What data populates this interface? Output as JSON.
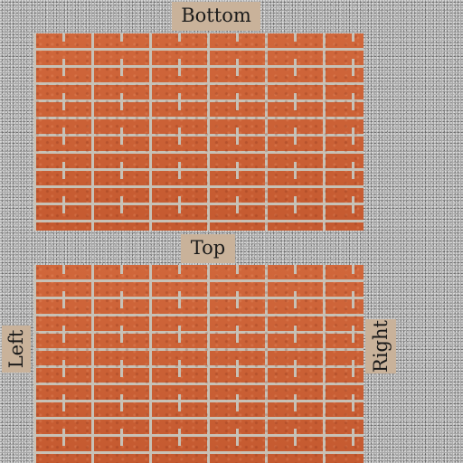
{
  "labels": {
    "bottom": "Bottom",
    "top": "Top",
    "left": "Left",
    "right": "Right"
  },
  "colors": {
    "brick": "#c55a30",
    "mortar": "#c7c1b6",
    "label_background": "#c9b29a",
    "stucco_background": "#a9a9a9"
  }
}
